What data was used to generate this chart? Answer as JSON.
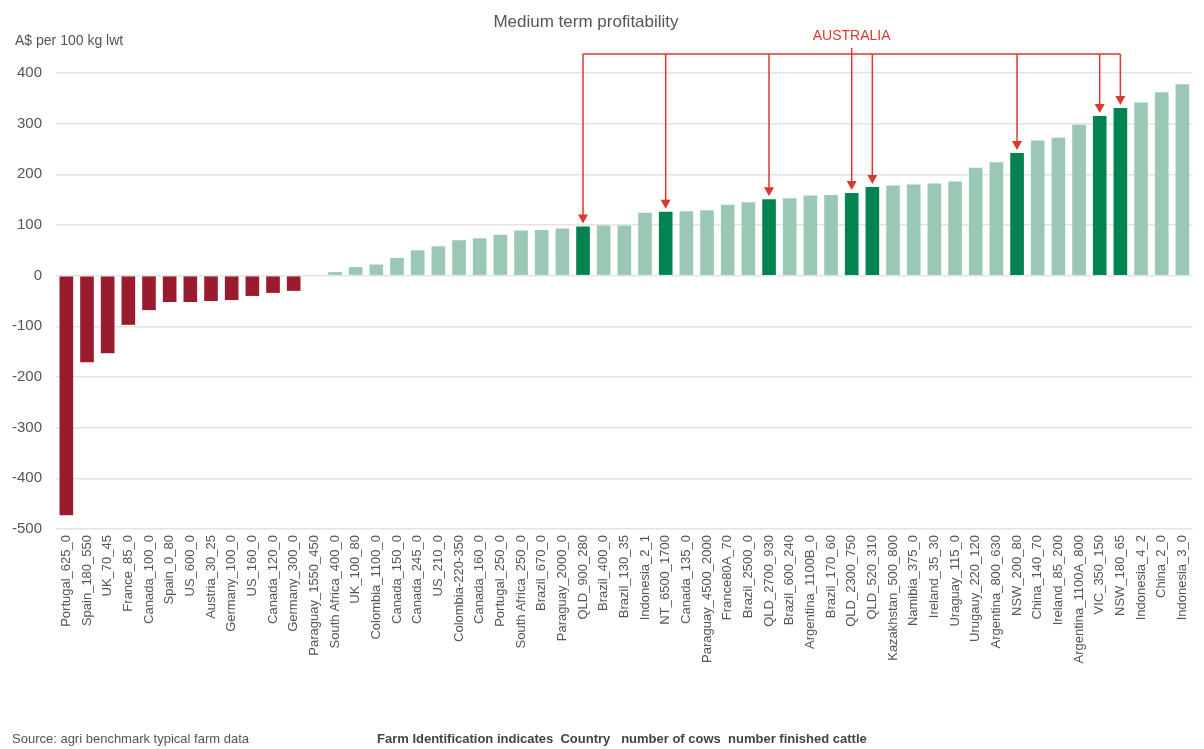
{
  "chart_data": {
    "type": "bar",
    "title": "Medium term profitability",
    "ylabel": "A$ per 100 kg lwt",
    "categories": [
      "Portugal_625_0",
      "Spain_180_550",
      "UK_70_45",
      "France_85_0",
      "Canada_100_0",
      "Spain_0_80",
      "US_600_0",
      "Austria_30_25",
      "Germany_100_0",
      "US_160_0",
      "Canada_120_0",
      "Germany_300_0",
      "Paraguay_1550_450",
      "South Africa_400_0",
      "UK_100_80",
      "Colombia_1100_0",
      "Canada_150_0",
      "Canada_245_0",
      "US_210_0",
      "Colombia-220-350",
      "Canada_160_0",
      "Portugal_250_0",
      "South Africa_250_0",
      "Brazil_670_0",
      "Paraguay_2000_0",
      "QLD_900_280",
      "Brazil_400_0",
      "Brazil_130_35",
      "Indonesia_2_1",
      "NT_6500_1700",
      "Canada_135_0",
      "Paraguay_4500_2000",
      "France80A_70",
      "Brazil_2500_0",
      "QLD_2700_930",
      "Brazil_600_240",
      "Argentina_1100B_0",
      "Brazil_170_60",
      "QLD_2300_750",
      "QLD_520_310",
      "Kazakhstan_500_800",
      "Namibia_375_0",
      "Ireland_35_30",
      "Uraguay_115_0",
      "Urugauy_220_120",
      "Argentina_800_630",
      "NSW_200_80",
      "China_140_70",
      "Ireland_85_200",
      "Argentina_1100A_800",
      "VIC_350_150",
      "NSW_180_65",
      "Indonesia_4_2",
      "China_2_0",
      "Indonesia_3_0"
    ],
    "values": [
      -473,
      -171,
      -153,
      -97,
      -68,
      -52,
      -52,
      -50,
      -48,
      -40,
      -34,
      -30,
      0,
      7,
      17,
      22,
      35,
      50,
      58,
      70,
      74,
      81,
      89,
      90,
      93,
      97,
      99,
      99,
      124,
      126,
      127,
      129,
      140,
      145,
      151,
      153,
      158,
      159,
      163,
      175,
      178,
      180,
      182,
      186,
      213,
      224,
      242,
      267,
      272,
      298,
      315,
      331,
      342,
      362,
      378
    ],
    "colors": [
      "#9b1b2e",
      "#9b1b2e",
      "#9b1b2e",
      "#9b1b2e",
      "#9b1b2e",
      "#9b1b2e",
      "#9b1b2e",
      "#9b1b2e",
      "#9b1b2e",
      "#9b1b2e",
      "#9b1b2e",
      "#9b1b2e",
      "#9ac8b5",
      "#9ac8b5",
      "#9ac8b5",
      "#9ac8b5",
      "#9ac8b5",
      "#9ac8b5",
      "#9ac8b5",
      "#9ac8b5",
      "#9ac8b5",
      "#9ac8b5",
      "#9ac8b5",
      "#9ac8b5",
      "#9ac8b5",
      "#03834f",
      "#9ac8b5",
      "#9ac8b5",
      "#9ac8b5",
      "#03834f",
      "#9ac8b5",
      "#9ac8b5",
      "#9ac8b5",
      "#9ac8b5",
      "#03834f",
      "#9ac8b5",
      "#9ac8b5",
      "#9ac8b5",
      "#03834f",
      "#03834f",
      "#9ac8b5",
      "#9ac8b5",
      "#9ac8b5",
      "#9ac8b5",
      "#9ac8b5",
      "#9ac8b5",
      "#03834f",
      "#9ac8b5",
      "#9ac8b5",
      "#9ac8b5",
      "#03834f",
      "#03834f",
      "#9ac8b5",
      "#9ac8b5",
      "#9ac8b5"
    ],
    "ylim": [
      -500,
      400
    ],
    "yticks": [
      -500,
      -400,
      -300,
      -200,
      -100,
      0,
      100,
      200,
      300,
      400
    ],
    "grid": "y",
    "annotations": [
      "AUSTRALIA",
      "Source: agri benchmark typical farm data",
      "Farm Identification indicates  Country   number of cows  number finished cattle"
    ]
  }
}
